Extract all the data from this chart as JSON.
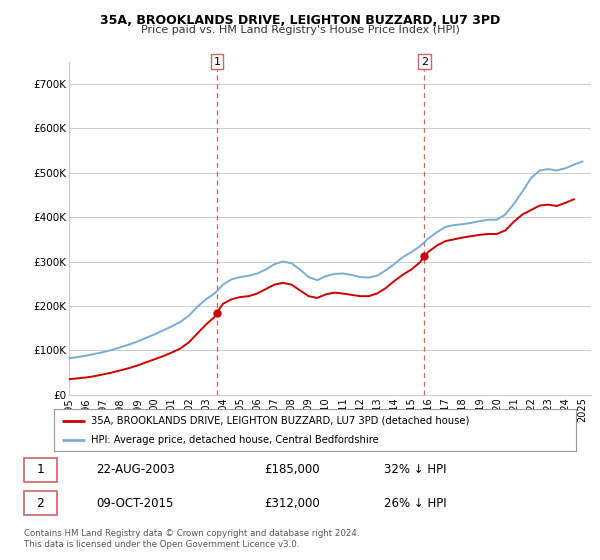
{
  "title": "35A, BROOKLANDS DRIVE, LEIGHTON BUZZARD, LU7 3PD",
  "subtitle": "Price paid vs. HM Land Registry's House Price Index (HPI)",
  "legend_label_red": "35A, BROOKLANDS DRIVE, LEIGHTON BUZZARD, LU7 3PD (detached house)",
  "legend_label_blue": "HPI: Average price, detached house, Central Bedfordshire",
  "transaction1_date": "22-AUG-2003",
  "transaction1_price": "£185,000",
  "transaction1_info": "32% ↓ HPI",
  "transaction2_date": "09-OCT-2015",
  "transaction2_price": "£312,000",
  "transaction2_info": "26% ↓ HPI",
  "footer": "Contains HM Land Registry data © Crown copyright and database right 2024.\nThis data is licensed under the Open Government Licence v3.0.",
  "xlim_start": 1995.0,
  "xlim_end": 2025.5,
  "ylim_min": 0,
  "ylim_max": 750000,
  "yticks": [
    0,
    100000,
    200000,
    300000,
    400000,
    500000,
    600000,
    700000
  ],
  "ytick_labels": [
    "£0",
    "£100K",
    "£200K",
    "£300K",
    "£400K",
    "£500K",
    "£600K",
    "£700K"
  ],
  "xticks": [
    1995,
    1996,
    1997,
    1998,
    1999,
    2000,
    2001,
    2002,
    2003,
    2004,
    2005,
    2006,
    2007,
    2008,
    2009,
    2010,
    2011,
    2012,
    2013,
    2014,
    2015,
    2016,
    2017,
    2018,
    2019,
    2020,
    2021,
    2022,
    2023,
    2024,
    2025
  ],
  "vline1_x": 2003.64,
  "vline2_x": 2015.77,
  "marker1_x": 2003.64,
  "marker1_y": 185000,
  "marker2_x": 2015.77,
  "marker2_y": 312000,
  "bg_color": "#ffffff",
  "plot_bg_color": "#ffffff",
  "grid_color": "#cccccc",
  "red_color": "#cc0000",
  "blue_color": "#7aadd4",
  "vline_color": "#cc6666",
  "hpi_data_years": [
    1995.0,
    1995.5,
    1996.0,
    1996.5,
    1997.0,
    1997.5,
    1998.0,
    1998.5,
    1999.0,
    1999.5,
    2000.0,
    2000.5,
    2001.0,
    2001.5,
    2002.0,
    2002.5,
    2003.0,
    2003.5,
    2004.0,
    2004.5,
    2005.0,
    2005.5,
    2006.0,
    2006.5,
    2007.0,
    2007.5,
    2008.0,
    2008.5,
    2009.0,
    2009.5,
    2010.0,
    2010.5,
    2011.0,
    2011.5,
    2012.0,
    2012.5,
    2013.0,
    2013.5,
    2014.0,
    2014.5,
    2015.0,
    2015.5,
    2016.0,
    2016.5,
    2017.0,
    2017.5,
    2018.0,
    2018.5,
    2019.0,
    2019.5,
    2020.0,
    2020.5,
    2021.0,
    2021.5,
    2022.0,
    2022.5,
    2023.0,
    2023.5,
    2024.0,
    2024.5,
    2025.0
  ],
  "hpi_data_values": [
    82000,
    85000,
    88000,
    92000,
    96000,
    101000,
    107000,
    113000,
    120000,
    128000,
    136000,
    145000,
    154000,
    164000,
    178000,
    198000,
    215000,
    228000,
    248000,
    260000,
    265000,
    268000,
    273000,
    282000,
    294000,
    300000,
    296000,
    282000,
    265000,
    258000,
    267000,
    272000,
    273000,
    270000,
    265000,
    264000,
    268000,
    280000,
    294000,
    310000,
    321000,
    334000,
    352000,
    366000,
    378000,
    382000,
    384000,
    387000,
    391000,
    394000,
    394000,
    406000,
    430000,
    458000,
    488000,
    505000,
    508000,
    505000,
    510000,
    518000,
    525000
  ],
  "price_data_years": [
    1995.0,
    1995.5,
    1996.0,
    1996.5,
    1997.0,
    1997.5,
    1998.0,
    1998.5,
    1999.0,
    1999.5,
    2000.0,
    2000.5,
    2001.0,
    2001.5,
    2002.0,
    2002.5,
    2003.0,
    2003.5,
    2003.64,
    2004.0,
    2004.5,
    2005.0,
    2005.5,
    2006.0,
    2006.5,
    2007.0,
    2007.5,
    2008.0,
    2008.5,
    2009.0,
    2009.5,
    2010.0,
    2010.5,
    2011.0,
    2011.5,
    2012.0,
    2012.5,
    2013.0,
    2013.5,
    2014.0,
    2014.5,
    2015.0,
    2015.5,
    2015.77,
    2016.0,
    2016.5,
    2017.0,
    2017.5,
    2018.0,
    2018.5,
    2019.0,
    2019.5,
    2020.0,
    2020.5,
    2021.0,
    2021.5,
    2022.0,
    2022.5,
    2023.0,
    2023.5,
    2024.0,
    2024.5
  ],
  "price_data_values": [
    35000,
    37000,
    39000,
    42000,
    46000,
    50000,
    55000,
    60000,
    66000,
    73000,
    80000,
    87000,
    95000,
    104000,
    118000,
    138000,
    158000,
    175000,
    185000,
    205000,
    215000,
    220000,
    222000,
    228000,
    238000,
    248000,
    252000,
    248000,
    235000,
    222000,
    218000,
    226000,
    230000,
    228000,
    225000,
    222000,
    222000,
    228000,
    240000,
    256000,
    270000,
    282000,
    298000,
    312000,
    322000,
    336000,
    346000,
    350000,
    354000,
    357000,
    360000,
    362000,
    362000,
    370000,
    390000,
    406000,
    416000,
    426000,
    428000,
    425000,
    432000,
    440000
  ]
}
